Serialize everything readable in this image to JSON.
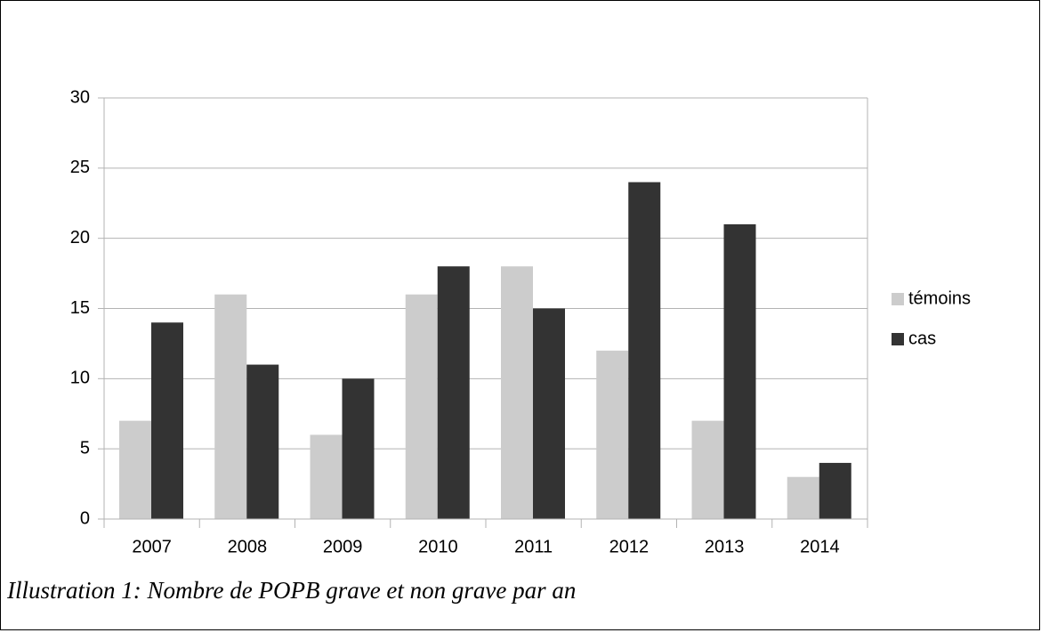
{
  "chart_data": {
    "type": "bar",
    "categories": [
      "2007",
      "2008",
      "2009",
      "2010",
      "2011",
      "2012",
      "2013",
      "2014"
    ],
    "series": [
      {
        "name": "témoins",
        "color": "#cccccc",
        "values": [
          7,
          16,
          6,
          16,
          18,
          12,
          7,
          3
        ]
      },
      {
        "name": "cas",
        "color": "#333333",
        "values": [
          14,
          11,
          10,
          18,
          15,
          24,
          21,
          4
        ]
      }
    ],
    "ylim": [
      0,
      30
    ],
    "yticks": [
      0,
      5,
      10,
      15,
      20,
      25,
      30
    ],
    "grid": true,
    "legend": "right",
    "caption": "Illustration 1: Nombre de POPB grave et non grave par an"
  }
}
